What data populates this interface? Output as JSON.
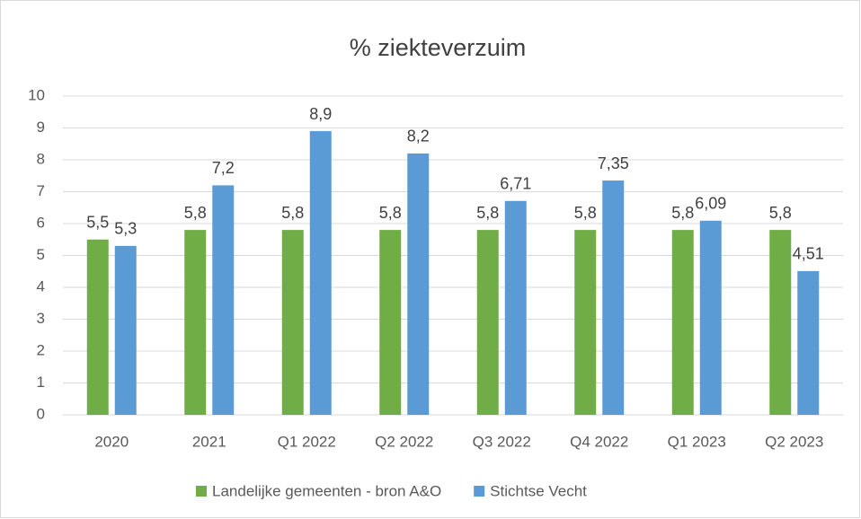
{
  "chart_data": {
    "type": "bar",
    "title": "% ziekteverzuim",
    "categories": [
      "2020",
      "2021",
      "Q1 2022",
      "Q2 2022",
      "Q3 2022",
      "Q4 2022",
      "Q1 2023",
      "Q2 2023"
    ],
    "series": [
      {
        "name": "Landelijke gemeenten - bron A&O",
        "color": "#70ad47",
        "values": [
          5.5,
          5.8,
          5.8,
          5.8,
          5.8,
          5.8,
          5.8,
          5.8
        ],
        "value_labels": [
          "5,5",
          "5,8",
          "5,8",
          "5,8",
          "5,8",
          "5,8",
          "5,8",
          "5,8"
        ]
      },
      {
        "name": "Stichtse Vecht",
        "color": "#5b9bd5",
        "values": [
          5.3,
          7.2,
          8.9,
          8.2,
          6.71,
          7.35,
          6.09,
          4.51
        ],
        "value_labels": [
          "5,3",
          "7,2",
          "8,9",
          "8,2",
          "6,71",
          "7,35",
          "6,09",
          "4,51"
        ]
      }
    ],
    "ylim": [
      0,
      10
    ],
    "yticks": [
      0,
      1,
      2,
      3,
      4,
      5,
      6,
      7,
      8,
      9,
      10
    ],
    "grid": true,
    "legend": "bottom"
  }
}
